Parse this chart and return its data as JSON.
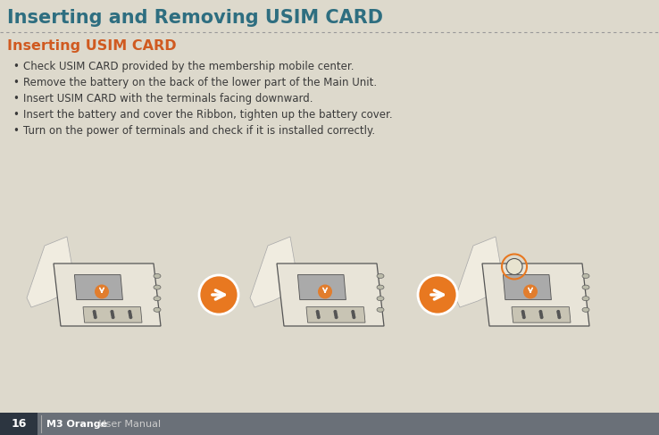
{
  "bg_color": "#ddd9cc",
  "title": "Inserting and Removing USIM CARD",
  "title_color": "#2e6e80",
  "title_fontsize": 15,
  "section_title": "Inserting USIM CARD",
  "section_title_color": "#d05a20",
  "section_title_fontsize": 11.5,
  "bullet_color": "#3a3a3a",
  "bullet_fontsize": 8.5,
  "bullets": [
    "Check USIM CARD provided by the membership mobile center.",
    "Remove the battery on the back of the lower part of the Main Unit.",
    "Insert USIM CARD with the terminals facing downward.",
    "Insert the battery and cover the Ribbon, tighten up the battery cover.",
    "Turn on the power of terminals and check if it is installed correctly."
  ],
  "footer_bg": "#6a7078",
  "footer_page_bg": "#2c3540",
  "footer_page_num": "16",
  "footer_page_color": "#ffffff",
  "footer_text": "M3 Orange",
  "footer_text2": " User Manual",
  "footer_text_color": "#ffffff",
  "footer_text2_color": "#cccccc",
  "footer_fontsize": 8,
  "dotted_line_color": "#999999",
  "arrow_color": "#e87820",
  "device_edge_color": "#555555",
  "device_body_color": "#e8e4d8",
  "device_detail_color": "#aaaaaa",
  "hand_color": "#f0ece0"
}
